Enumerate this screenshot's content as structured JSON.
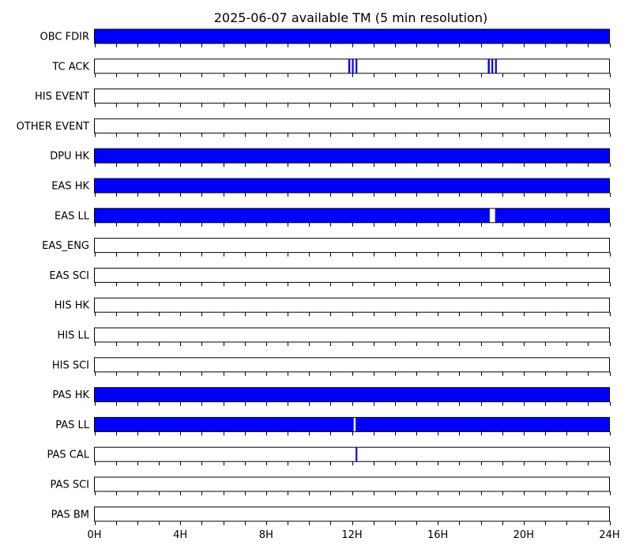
{
  "chart_data": {
    "type": "timeline",
    "title": "2025-06-07 available TM (5 min resolution)",
    "x_unit": "hours",
    "xlim": [
      0,
      24
    ],
    "x_ticks": [
      0,
      4,
      8,
      12,
      16,
      20,
      24
    ],
    "x_tick_labels": [
      "0H",
      "4H",
      "8H",
      "12H",
      "16H",
      "20H",
      "24H"
    ],
    "minor_tick_step_hours": 1,
    "fill_color": "#0000ff",
    "rows": [
      {
        "name": "OBC FDIR",
        "intervals": [
          [
            0,
            24
          ]
        ]
      },
      {
        "name": "TC ACK",
        "intervals": [
          [
            11.83,
            11.92
          ],
          [
            12.0,
            12.08
          ],
          [
            12.17,
            12.25
          ],
          [
            18.33,
            18.42
          ],
          [
            18.5,
            18.58
          ],
          [
            18.67,
            18.75
          ]
        ]
      },
      {
        "name": "HIS EVENT",
        "intervals": []
      },
      {
        "name": "OTHER EVENT",
        "intervals": []
      },
      {
        "name": "DPU HK",
        "intervals": [
          [
            0,
            24
          ]
        ]
      },
      {
        "name": "EAS HK",
        "intervals": [
          [
            0,
            24
          ]
        ]
      },
      {
        "name": "EAS LL",
        "intervals": [
          [
            0,
            18.42
          ],
          [
            18.67,
            24
          ]
        ]
      },
      {
        "name": "EAS_ENG",
        "intervals": []
      },
      {
        "name": "EAS SCI",
        "intervals": []
      },
      {
        "name": "HIS HK",
        "intervals": []
      },
      {
        "name": "HIS LL",
        "intervals": []
      },
      {
        "name": "HIS SCI",
        "intervals": []
      },
      {
        "name": "PAS HK",
        "intervals": [
          [
            0,
            24
          ]
        ]
      },
      {
        "name": "PAS LL",
        "intervals": [
          [
            0,
            12.08
          ],
          [
            12.17,
            24
          ]
        ]
      },
      {
        "name": "PAS CAL",
        "intervals": [
          [
            12.17,
            12.25
          ]
        ]
      },
      {
        "name": "PAS SCI",
        "intervals": []
      },
      {
        "name": "PAS BM",
        "intervals": []
      }
    ]
  }
}
